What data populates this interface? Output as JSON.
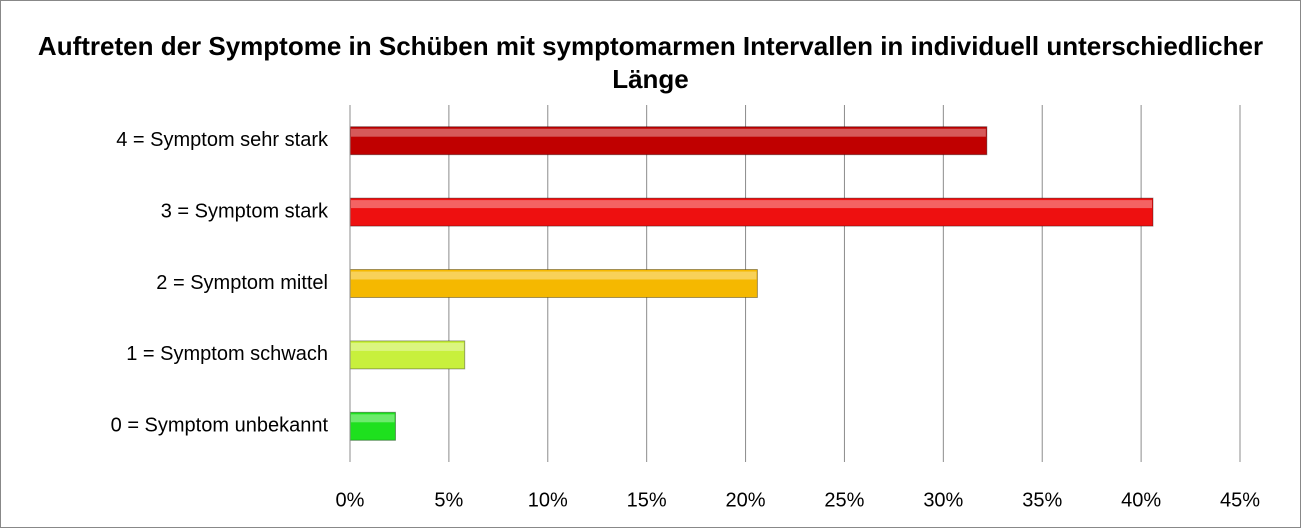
{
  "chart_data": {
    "type": "bar",
    "orientation": "horizontal",
    "title": "Auftreten der Symptome in Schüben mit symptomarmen Intervallen in individuell unterschiedlicher Länge",
    "categories": [
      "4 = Symptom sehr stark",
      "3 = Symptom stark",
      "2 = Symptom mittel",
      "1 = Symptom schwach",
      "0 = Symptom unbekannt"
    ],
    "values": [
      32.2,
      40.6,
      20.6,
      5.8,
      2.3
    ],
    "colors": [
      "#c00000",
      "#ee1010",
      "#f5b800",
      "#c8f03c",
      "#1ee01e"
    ],
    "xlim": [
      0,
      45
    ],
    "xticks": [
      {
        "value": 0,
        "label": "0%"
      },
      {
        "value": 5,
        "label": "5%"
      },
      {
        "value": 10,
        "label": "10%"
      },
      {
        "value": 15,
        "label": "15%"
      },
      {
        "value": 20,
        "label": "20%"
      },
      {
        "value": 25,
        "label": "25%"
      },
      {
        "value": 30,
        "label": "30%"
      },
      {
        "value": 35,
        "label": "35%"
      },
      {
        "value": 40,
        "label": "40%"
      },
      {
        "value": 45,
        "label": "45%"
      }
    ],
    "grid": true
  }
}
